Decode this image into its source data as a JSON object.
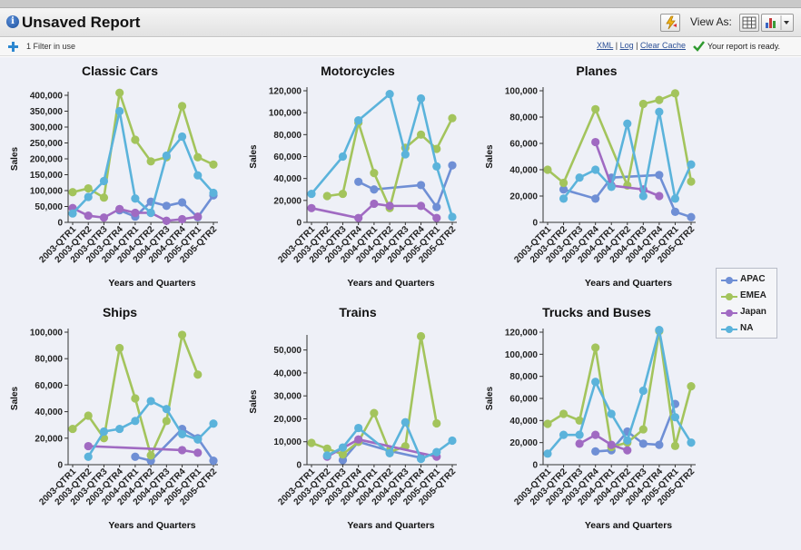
{
  "header": {
    "title": "Unsaved Report",
    "view_as_label": "View As:"
  },
  "subbar": {
    "filters_label": "1 Filter in use",
    "links": [
      "XML",
      "Log",
      "Clear Cache"
    ],
    "separator": "|",
    "status": "Your report is ready."
  },
  "legend": [
    {
      "name": "APAC",
      "color": "#6f8fd5"
    },
    {
      "name": "EMEA",
      "color": "#a3c45c"
    },
    {
      "name": "Japan",
      "color": "#a06ac2"
    },
    {
      "name": "NA",
      "color": "#5bb3db"
    }
  ],
  "chart_data": [
    {
      "type": "line",
      "title": "Classic Cars",
      "xlabel": "Years and Quarters",
      "ylabel": "Sales",
      "ylim": [
        0,
        400000
      ],
      "yticks": [
        "0",
        "50,000",
        "100,000",
        "150,000",
        "200,000",
        "250,000",
        "300,000",
        "350,000",
        "400,000"
      ],
      "categories": [
        "2003-QTR1",
        "2003-QTR2",
        "2003-QTR3",
        "2003-QTR4",
        "2004-QTR1",
        "2004-QTR2",
        "2004-QTR3",
        "2004-QTR4",
        "2005-QTR1",
        "2005-QTR2"
      ],
      "series": [
        {
          "name": "APAC",
          "values": [
            null,
            null,
            null,
            38000,
            18000,
            65000,
            52000,
            63000,
            16000,
            85000
          ]
        },
        {
          "name": "EMEA",
          "values": [
            95000,
            107000,
            78000,
            408000,
            260000,
            192000,
            205000,
            366000,
            205000,
            182000
          ]
        },
        {
          "name": "Japan",
          "values": [
            45000,
            21000,
            15000,
            42000,
            30000,
            30000,
            5000,
            10000,
            18000,
            null
          ]
        },
        {
          "name": "NA",
          "values": [
            28000,
            80000,
            130000,
            350000,
            75000,
            30000,
            210000,
            270000,
            148000,
            93000
          ]
        }
      ]
    },
    {
      "type": "line",
      "title": "Motorcycles",
      "xlabel": "Years and Quarters",
      "ylabel": "Sales",
      "ylim": [
        0,
        120000
      ],
      "yticks": [
        "0",
        "20,000",
        "40,000",
        "60,000",
        "80,000",
        "100,000",
        "120,000"
      ],
      "categories": [
        "2003-QTR1",
        "2003-QTR2",
        "2003-QTR3",
        "2003-QTR4",
        "2004-QTR1",
        "2004-QTR2",
        "2004-QTR3",
        "2004-QTR4",
        "2005-QTR1",
        "2005-QTR2"
      ],
      "series": [
        {
          "name": "APAC",
          "values": [
            null,
            null,
            null,
            37000,
            30000,
            null,
            null,
            34000,
            14000,
            52000
          ]
        },
        {
          "name": "EMEA",
          "values": [
            null,
            24000,
            26000,
            91000,
            45000,
            13000,
            68000,
            80000,
            67000,
            95000
          ]
        },
        {
          "name": "Japan",
          "values": [
            13000,
            null,
            null,
            4000,
            17000,
            15000,
            null,
            15000,
            4000,
            null
          ]
        },
        {
          "name": "NA",
          "values": [
            26000,
            null,
            60000,
            93000,
            null,
            117000,
            62000,
            113000,
            51000,
            5000
          ]
        }
      ]
    },
    {
      "type": "line",
      "title": "Planes",
      "xlabel": "Years and Quarters",
      "ylabel": "Sales",
      "ylim": [
        0,
        100000
      ],
      "yticks": [
        "0",
        "20,000",
        "40,000",
        "60,000",
        "80,000",
        "100,000"
      ],
      "categories": [
        "2003-QTR1",
        "2003-QTR2",
        "2003-QTR3",
        "2003-QTR4",
        "2004-QTR1",
        "2004-QTR2",
        "2004-QTR3",
        "2004-QTR4",
        "2005-QTR1",
        "2005-QTR2"
      ],
      "series": [
        {
          "name": "APAC",
          "values": [
            null,
            25000,
            null,
            18000,
            34000,
            null,
            null,
            36000,
            8000,
            4000
          ]
        },
        {
          "name": "EMEA",
          "values": [
            40000,
            30000,
            null,
            86000,
            null,
            28000,
            90000,
            93000,
            98000,
            31000
          ]
        },
        {
          "name": "Japan",
          "values": [
            null,
            null,
            null,
            61000,
            28000,
            null,
            25000,
            20000,
            null,
            null
          ]
        },
        {
          "name": "NA",
          "values": [
            null,
            18000,
            34000,
            40000,
            27000,
            75000,
            20000,
            84000,
            18000,
            44000
          ]
        }
      ]
    },
    {
      "type": "line",
      "title": "Ships",
      "xlabel": "Years and Quarters",
      "ylabel": "Sales",
      "ylim": [
        0,
        100000
      ],
      "yticks": [
        "0",
        "20,000",
        "40,000",
        "60,000",
        "80,000",
        "100,000"
      ],
      "categories": [
        "2003-QTR1",
        "2003-QTR2",
        "2003-QTR3",
        "2003-QTR4",
        "2004-QTR1",
        "2004-QTR2",
        "2004-QTR3",
        "2004-QTR4",
        "2005-QTR1",
        "2005-QTR2"
      ],
      "series": [
        {
          "name": "APAC",
          "values": [
            null,
            null,
            null,
            null,
            6000,
            3000,
            null,
            27000,
            20000,
            3000
          ]
        },
        {
          "name": "EMEA",
          "values": [
            27000,
            37000,
            20000,
            88000,
            50000,
            7000,
            33000,
            98000,
            68000,
            null
          ]
        },
        {
          "name": "Japan",
          "values": [
            null,
            14000,
            null,
            null,
            null,
            null,
            null,
            11000,
            9000,
            null
          ]
        },
        {
          "name": "NA",
          "values": [
            null,
            6000,
            25000,
            27000,
            33000,
            48000,
            42000,
            23000,
            19000,
            31000
          ]
        }
      ]
    },
    {
      "type": "line",
      "title": "Trains",
      "xlabel": "Years and Quarters",
      "ylabel": "Sales",
      "ylim": [
        0,
        55000
      ],
      "yticks": [
        "0",
        "10,000",
        "20,000",
        "30,000",
        "40,000",
        "50,000"
      ],
      "categories": [
        "2003-QTR1",
        "2003-QTR2",
        "2003-QTR3",
        "2003-QTR4",
        "2004-QTR1",
        "2004-QTR2",
        "2004-QTR3",
        "2004-QTR4",
        "2005-QTR1",
        "2005-QTR2"
      ],
      "series": [
        {
          "name": "APAC",
          "values": [
            null,
            null,
            2000,
            10000,
            null,
            6000,
            null,
            3000,
            null,
            null
          ]
        },
        {
          "name": "EMEA",
          "values": [
            9500,
            7000,
            4500,
            10000,
            22500,
            5500,
            8000,
            56000,
            18000,
            null
          ]
        },
        {
          "name": "Japan",
          "values": [
            null,
            3500,
            null,
            11000,
            null,
            null,
            null,
            null,
            3500,
            null
          ]
        },
        {
          "name": "NA",
          "values": [
            null,
            4000,
            7500,
            16000,
            null,
            5000,
            18500,
            2500,
            5500,
            10500
          ]
        }
      ]
    },
    {
      "type": "line",
      "title": "Trucks and Buses",
      "xlabel": "Years and Quarters",
      "ylabel": "Sales",
      "ylim": [
        0,
        120000
      ],
      "yticks": [
        "0",
        "20,000",
        "40,000",
        "60,000",
        "80,000",
        "100,000",
        "120,000"
      ],
      "categories": [
        "2003-QTR1",
        "2003-QTR2",
        "2003-QTR3",
        "2003-QTR4",
        "2004-QTR1",
        "2004-QTR2",
        "2004-QTR3",
        "2004-QTR4",
        "2005-QTR1",
        "2005-QTR2"
      ],
      "series": [
        {
          "name": "APAC",
          "values": [
            null,
            null,
            null,
            12000,
            13000,
            30000,
            19000,
            18000,
            55000,
            null
          ]
        },
        {
          "name": "EMEA",
          "values": [
            37000,
            46000,
            40000,
            106000,
            16000,
            20000,
            32000,
            121000,
            17000,
            71000
          ]
        },
        {
          "name": "Japan",
          "values": [
            null,
            null,
            19000,
            27000,
            18000,
            13000,
            null,
            null,
            null,
            null
          ]
        },
        {
          "name": "NA",
          "values": [
            10000,
            27000,
            27000,
            75000,
            46000,
            22000,
            67000,
            122000,
            43000,
            20000
          ]
        }
      ]
    }
  ]
}
